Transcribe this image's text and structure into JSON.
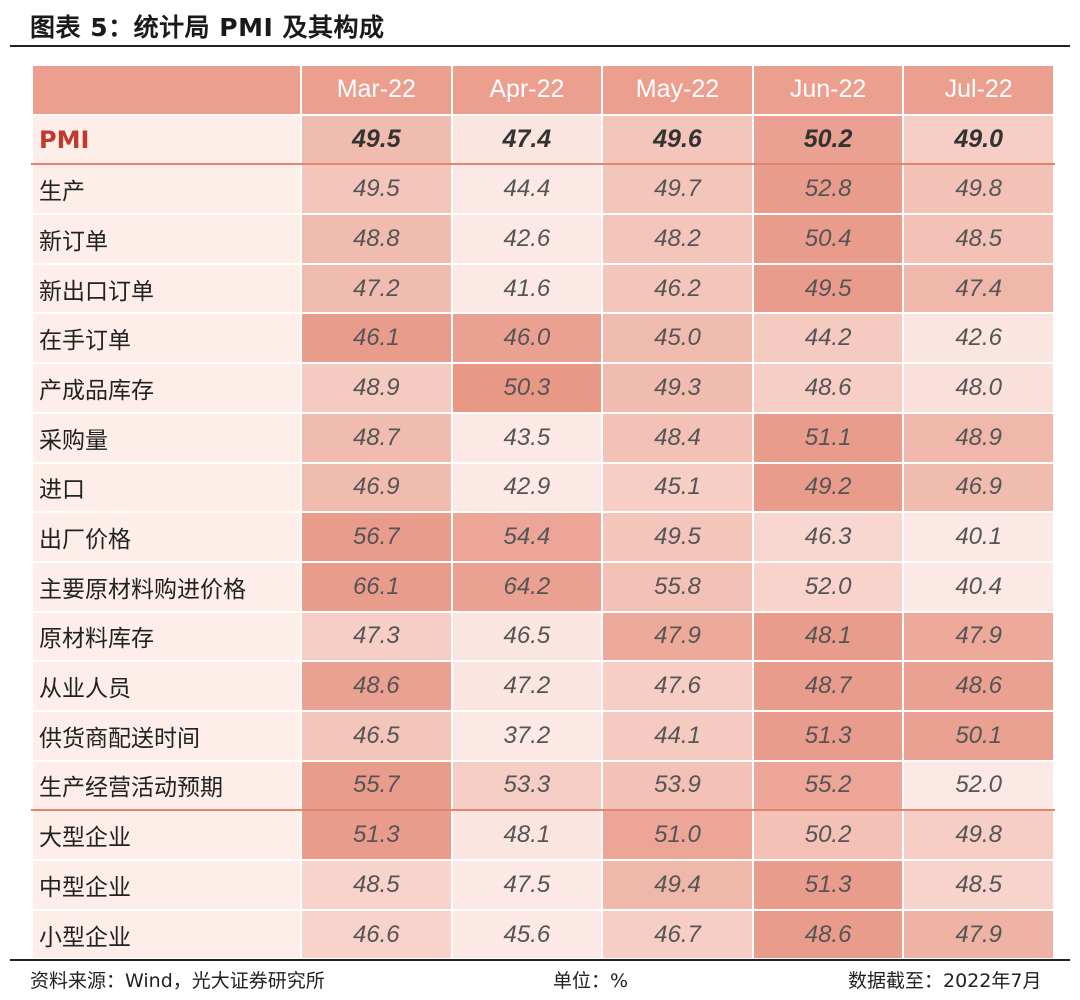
{
  "title": "图表 5：统计局 PMI 及其构成",
  "chart_data": {
    "type": "table",
    "columns": [
      "Mar-22",
      "Apr-22",
      "May-22",
      "Jun-22",
      "Jul-22"
    ],
    "rows": [
      {
        "label": "PMI",
        "values": [
          "49.5",
          "47.4",
          "49.6",
          "50.2",
          "49.0"
        ],
        "heat": [
          0.55,
          0.1,
          0.45,
          0.85,
          0.35
        ]
      },
      {
        "label": "生产",
        "values": [
          "49.5",
          "44.4",
          "49.7",
          "52.8",
          "49.8"
        ],
        "heat": [
          0.45,
          0.05,
          0.45,
          0.9,
          0.5
        ]
      },
      {
        "label": "新订单",
        "values": [
          "48.8",
          "42.6",
          "48.2",
          "50.4",
          "48.5"
        ],
        "heat": [
          0.55,
          0.05,
          0.45,
          0.9,
          0.5
        ]
      },
      {
        "label": "新出口订单",
        "values": [
          "47.2",
          "41.6",
          "46.2",
          "49.5",
          "47.4"
        ],
        "heat": [
          0.55,
          0.05,
          0.45,
          0.9,
          0.6
        ]
      },
      {
        "label": "在手订单",
        "values": [
          "46.1",
          "46.0",
          "45.0",
          "44.2",
          "42.6"
        ],
        "heat": [
          0.9,
          0.85,
          0.55,
          0.4,
          0.1
        ]
      },
      {
        "label": "产成品库存",
        "values": [
          "48.9",
          "50.3",
          "49.3",
          "48.6",
          "48.0"
        ],
        "heat": [
          0.4,
          0.95,
          0.55,
          0.35,
          0.15
        ]
      },
      {
        "label": "采购量",
        "values": [
          "48.7",
          "43.5",
          "48.4",
          "51.1",
          "48.9"
        ],
        "heat": [
          0.55,
          0.05,
          0.5,
          0.9,
          0.6
        ]
      },
      {
        "label": "进口",
        "values": [
          "46.9",
          "42.9",
          "45.1",
          "49.2",
          "46.9"
        ],
        "heat": [
          0.55,
          0.05,
          0.35,
          0.9,
          0.55
        ]
      },
      {
        "label": "出厂价格",
        "values": [
          "56.7",
          "54.4",
          "49.5",
          "46.3",
          "40.1"
        ],
        "heat": [
          0.9,
          0.8,
          0.45,
          0.25,
          0.05
        ]
      },
      {
        "label": "主要原材料购进价格",
        "values": [
          "66.1",
          "64.2",
          "55.8",
          "52.0",
          "40.4"
        ],
        "heat": [
          0.9,
          0.85,
          0.5,
          0.3,
          0.05
        ]
      },
      {
        "label": "原材料库存",
        "values": [
          "47.3",
          "46.5",
          "47.9",
          "48.1",
          "47.9"
        ],
        "heat": [
          0.35,
          0.1,
          0.75,
          0.9,
          0.75
        ]
      },
      {
        "label": "从业人员",
        "values": [
          "48.6",
          "47.2",
          "47.6",
          "48.7",
          "48.6"
        ],
        "heat": [
          0.85,
          0.1,
          0.35,
          0.9,
          0.85
        ]
      },
      {
        "label": "供货商配送时间",
        "values": [
          "46.5",
          "37.2",
          "44.1",
          "51.3",
          "50.1"
        ],
        "heat": [
          0.45,
          0.05,
          0.4,
          0.9,
          0.85
        ]
      },
      {
        "label": "生产经营活动预期",
        "values": [
          "55.7",
          "53.3",
          "53.9",
          "55.2",
          "52.0"
        ],
        "heat": [
          0.9,
          0.35,
          0.5,
          0.8,
          0.05
        ]
      },
      {
        "label": "大型企业",
        "values": [
          "51.3",
          "48.1",
          "51.0",
          "50.2",
          "49.8"
        ],
        "heat": [
          0.9,
          0.1,
          0.8,
          0.5,
          0.35
        ]
      },
      {
        "label": "中型企业",
        "values": [
          "48.5",
          "47.5",
          "49.4",
          "51.3",
          "48.5"
        ],
        "heat": [
          0.3,
          0.05,
          0.6,
          0.9,
          0.3
        ]
      },
      {
        "label": "小型企业",
        "values": [
          "46.6",
          "45.6",
          "46.7",
          "48.6",
          "47.9"
        ],
        "heat": [
          0.3,
          0.05,
          0.35,
          0.9,
          0.65
        ]
      }
    ],
    "colors": {
      "low": "#fdeeea",
      "high": "#e89381",
      "header": "#ec9e8f"
    }
  },
  "footer": {
    "source": "资料来源：Wind，光大证券研究所",
    "unit": "单位：%",
    "date": "数据截至：2022年7月"
  }
}
